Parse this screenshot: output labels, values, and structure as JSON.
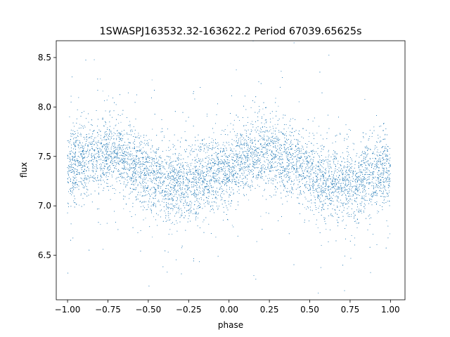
{
  "chart_data": {
    "type": "scatter",
    "title": "1SWASPJ163532.32-163622.2 Period 67039.65625s",
    "xlabel": "phase",
    "ylabel": "flux",
    "xlim": [
      -1.07,
      1.09
    ],
    "ylim": [
      6.05,
      8.67
    ],
    "xticks": [
      -1.0,
      -0.75,
      -0.5,
      -0.25,
      0.0,
      0.25,
      0.5,
      0.75,
      1.0
    ],
    "xtick_labels": [
      "−1.00",
      "−0.75",
      "−0.50",
      "−0.25",
      "0.00",
      "0.25",
      "0.50",
      "0.75",
      "1.00"
    ],
    "yticks": [
      6.5,
      7.0,
      7.5,
      8.0,
      8.5
    ],
    "ytick_labels": [
      "6.5",
      "7.0",
      "7.5",
      "8.0",
      "8.5"
    ],
    "point_color": "#1f77b4",
    "grid": false,
    "legend": "none",
    "series": [
      {
        "x_range": [
          -1.0,
          1.0
        ],
        "light_curve_x": [
          -1.0,
          -0.9,
          -0.8,
          -0.75,
          -0.7,
          -0.6,
          -0.5,
          -0.4,
          -0.3,
          -0.2,
          -0.1,
          0.0,
          0.1,
          0.2,
          0.25,
          0.3,
          0.4,
          0.5,
          0.6,
          0.7,
          0.8,
          0.9,
          1.0
        ],
        "light_curve_y": [
          7.38,
          7.47,
          7.53,
          7.55,
          7.52,
          7.44,
          7.33,
          7.24,
          7.2,
          7.24,
          7.31,
          7.38,
          7.47,
          7.53,
          7.55,
          7.52,
          7.44,
          7.33,
          7.24,
          7.2,
          7.24,
          7.31,
          7.38
        ],
        "scatter_sigma": 0.18,
        "n_points": 14000
      }
    ]
  }
}
